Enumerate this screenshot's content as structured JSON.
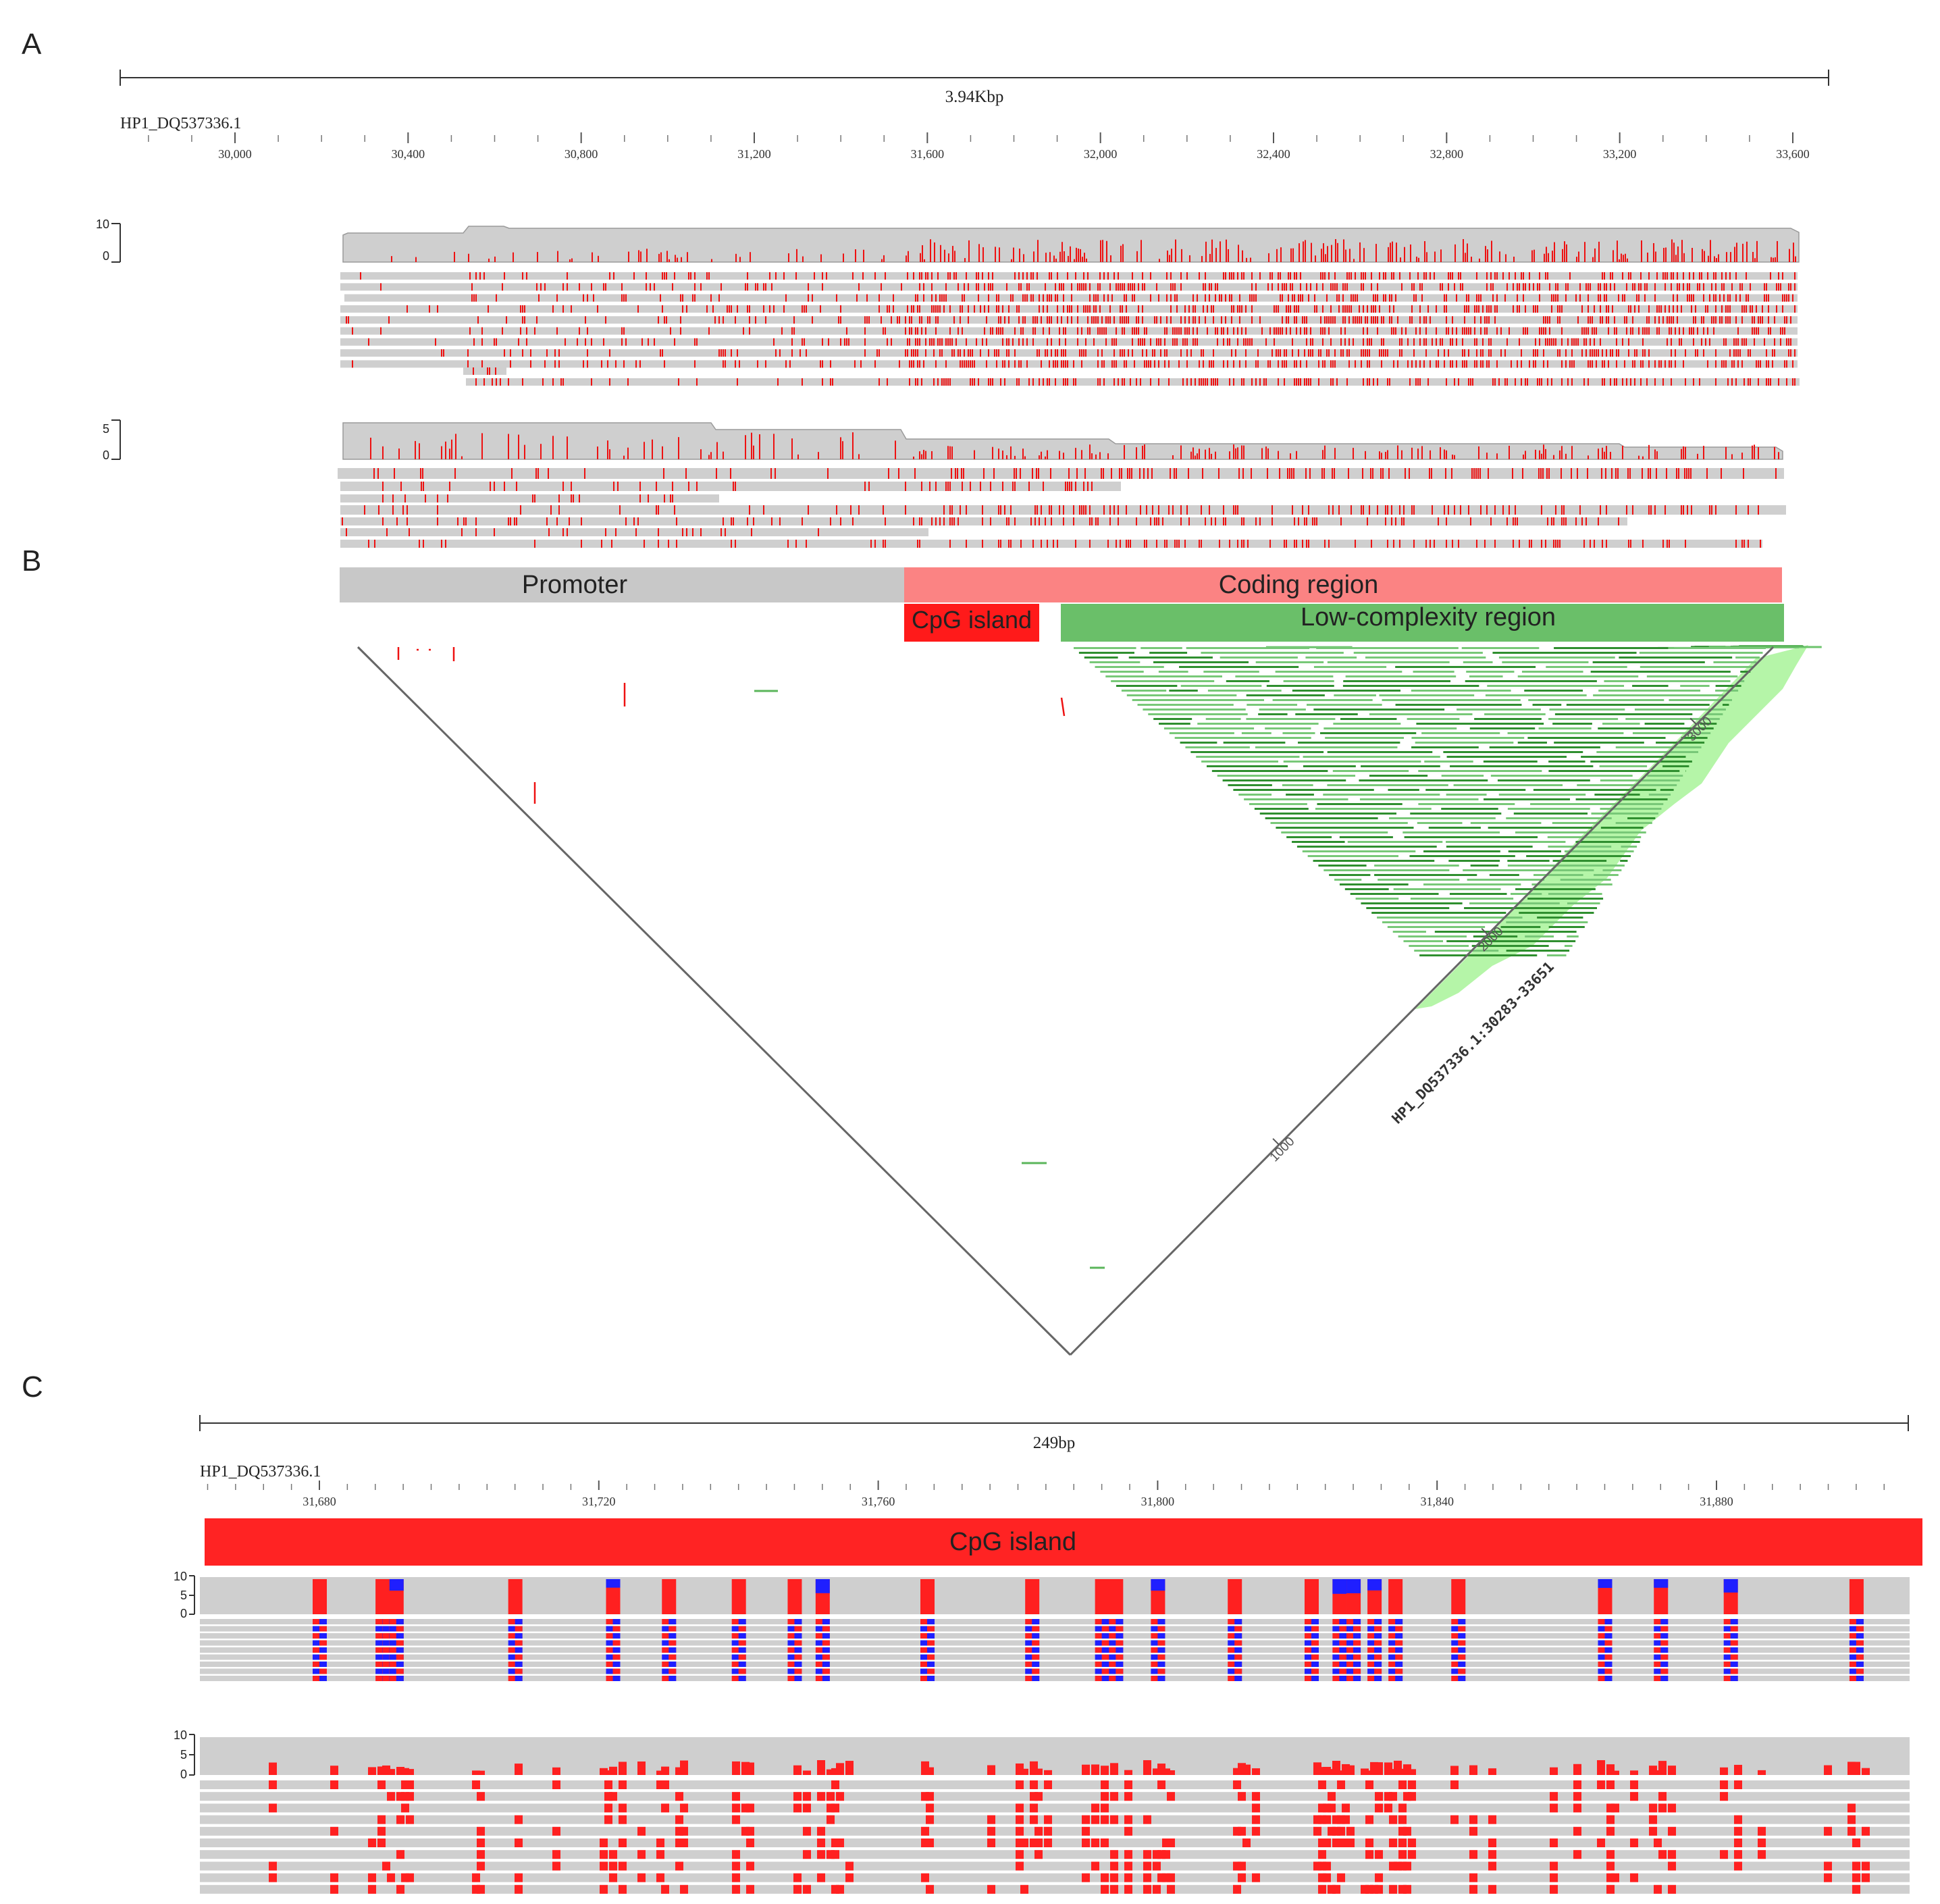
{
  "panels": {
    "a": "A",
    "b": "B",
    "c": "C"
  },
  "colors": {
    "read_gray": "#cfcfcf",
    "mismatch_red": "#ee1111",
    "methyl_red": "#ff2020",
    "unmethyl_blue": "#1f1fff",
    "promoter": "#c8c8c8",
    "coding": "#fb8383",
    "cpg": "#ff1a1a",
    "lowcomplex": "#6abf69",
    "dot_green": "#3a9a3a",
    "diag_green": "#b5f5a8"
  },
  "panel_a": {
    "scale_label": "3.94Kbp",
    "seq_name": "HP1_DQ537336.1",
    "ticks": [
      {
        "pos": 30000,
        "label": "30,000"
      },
      {
        "pos": 30400,
        "label": "30,400"
      },
      {
        "pos": 30800,
        "label": "30,800"
      },
      {
        "pos": 31200,
        "label": "31,200"
      },
      {
        "pos": 31600,
        "label": "31,600"
      },
      {
        "pos": 32000,
        "label": "32,000"
      },
      {
        "pos": 32400,
        "label": "32,400"
      },
      {
        "pos": 32800,
        "label": "32,800"
      },
      {
        "pos": 33200,
        "label": "33,200"
      },
      {
        "pos": 33600,
        "label": "33,600"
      }
    ],
    "track1_axis": {
      "top": "10",
      "bottom": "0"
    },
    "track2_axis": {
      "top": "5",
      "bottom": "0"
    }
  },
  "panel_b": {
    "annotations": {
      "promoter": "Promoter",
      "coding": "Coding region",
      "cpg": "CpG island",
      "lowcomplex": "Low-complexity region"
    },
    "dotplot_seq": "HP1_DQ537336.1:30283-33651",
    "diag_ticks": [
      {
        "pos": 1000,
        "label": "1000"
      },
      {
        "pos": 2000,
        "label": "2000"
      },
      {
        "pos": 3000,
        "label": "3000"
      }
    ]
  },
  "panel_c": {
    "scale_label": "249bp",
    "seq_name": "HP1_DQ537336.1",
    "ticks": [
      {
        "pos": 31680,
        "label": "31,680"
      },
      {
        "pos": 31720,
        "label": "31,720"
      },
      {
        "pos": 31760,
        "label": "31,760"
      },
      {
        "pos": 31800,
        "label": "31,800"
      },
      {
        "pos": 31840,
        "label": "31,840"
      },
      {
        "pos": 31880,
        "label": "31,880"
      }
    ],
    "cpg_label": "CpG island",
    "track1_axis": {
      "t10": "10",
      "t5": "5",
      "t0": "0"
    },
    "track2_axis": {
      "t10": "10",
      "t5": "5",
      "t0": "0"
    },
    "cpg_sites": [
      31680,
      31689,
      31690,
      31691,
      31708,
      31722,
      31730,
      31740,
      31748,
      31752,
      31767,
      31782,
      31792,
      31794,
      31800,
      31811,
      31822,
      31826,
      31828,
      31831,
      31834,
      31843,
      31864,
      31872,
      31882,
      31900
    ]
  }
}
